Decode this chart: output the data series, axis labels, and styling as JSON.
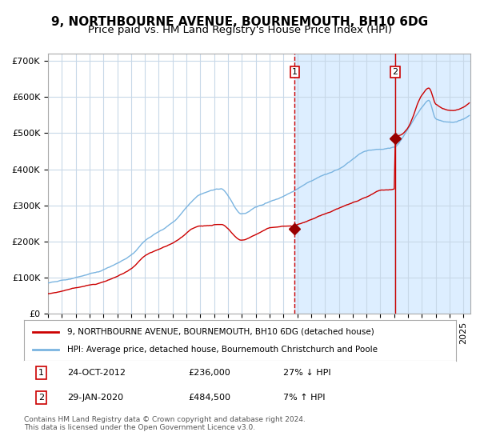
{
  "title": "9, NORTHBOURNE AVENUE, BOURNEMOUTH, BH10 6DG",
  "subtitle": "Price paid vs. HM Land Registry's House Price Index (HPI)",
  "ylabel": "",
  "xlim_start": 1995.0,
  "xlim_end": 2025.5,
  "ylim": [
    0,
    720000
  ],
  "yticks": [
    0,
    100000,
    200000,
    300000,
    400000,
    500000,
    600000,
    700000
  ],
  "ytick_labels": [
    "£0",
    "£100K",
    "£200K",
    "£300K",
    "£400K",
    "£500K",
    "£600K",
    "£700K"
  ],
  "purchase1_x": 2012.81,
  "purchase1_y": 236000,
  "purchase1_label": "1",
  "purchase2_x": 2020.08,
  "purchase2_y": 484500,
  "purchase2_label": "2",
  "shaded_region_start": 2012.81,
  "shaded_region_end": 2025.5,
  "hpi_color": "#7ab4e0",
  "price_color": "#cc0000",
  "purchase_marker_color": "#990000",
  "grid_color": "#c8d8e8",
  "background_color": "#ffffff",
  "shaded_color": "#ddeeff",
  "vline_color": "#cc0000",
  "legend_line1": "9, NORTHBOURNE AVENUE, BOURNEMOUTH, BH10 6DG (detached house)",
  "legend_line2": "HPI: Average price, detached house, Bournemouth Christchurch and Poole",
  "table_row1_num": "1",
  "table_row1_date": "24-OCT-2012",
  "table_row1_price": "£236,000",
  "table_row1_hpi": "27% ↓ HPI",
  "table_row2_num": "2",
  "table_row2_date": "29-JAN-2020",
  "table_row2_price": "£484,500",
  "table_row2_hpi": "7% ↑ HPI",
  "footnote": "Contains HM Land Registry data © Crown copyright and database right 2024.\nThis data is licensed under the Open Government Licence v3.0.",
  "title_fontsize": 11,
  "subtitle_fontsize": 9.5,
  "tick_fontsize": 8
}
